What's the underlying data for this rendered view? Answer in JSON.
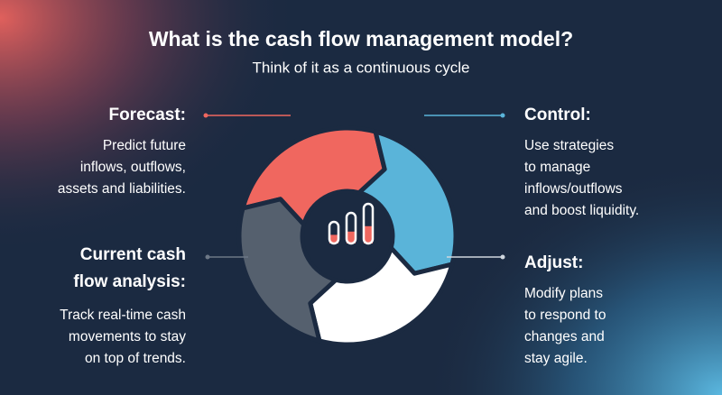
{
  "header": {
    "title": "What is the cash flow management model?",
    "subtitle": "Think of it as a continuous cycle"
  },
  "stages": [
    {
      "label": [
        "Forecast:"
      ],
      "description": [
        "Predict future",
        "inflows, outflows,",
        "assets and liabilities."
      ]
    },
    {
      "label": [
        "Control:"
      ],
      "description": [
        "Use strategies",
        "to manage",
        "inflows/outflows",
        "and boost liquidity."
      ]
    },
    {
      "label": [
        "Adjust:"
      ],
      "description": [
        "Modify plans",
        "to respond to",
        "changes and",
        "stay agile."
      ]
    },
    {
      "label": [
        "Current cash",
        "flow analysis:"
      ],
      "description": [
        "Track real-time cash",
        "movements to stay",
        "on top of trends."
      ]
    }
  ]
}
